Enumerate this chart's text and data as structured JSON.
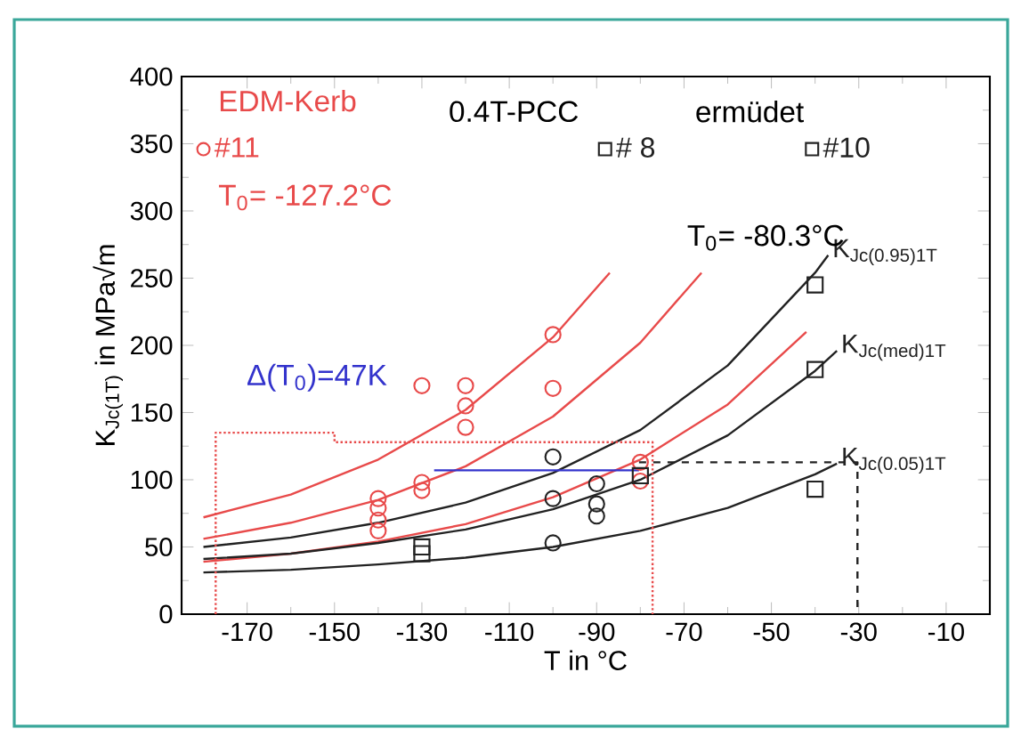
{
  "chart_data": {
    "type": "line",
    "xlabel": "T in °C",
    "ylabel": "K$_{Jc(1T)}$ in MPa√m",
    "xlim": [
      -185,
      0
    ],
    "ylim": [
      0,
      400
    ],
    "xticks": [
      -170,
      -150,
      -130,
      -110,
      -90,
      -70,
      -50,
      -30,
      -10
    ],
    "yticks": [
      0,
      50,
      100,
      150,
      200,
      250,
      300,
      350,
      400
    ],
    "legend": "top",
    "annotations": [
      "EDM-Kerb",
      "T$_{0}$= -127.2°C",
      "0.4T-PCC",
      "ermüdet",
      "T$_{0}$= -80.3°C",
      "Δ(T$_{0}$)=47K"
    ],
    "series": [
      {
        "color": "#e84a4a",
        "x": [
          -180,
          -160,
          -140,
          -120,
          -100,
          -87
        ],
        "values": [
          72,
          89,
          115,
          152,
          206,
          254
        ]
      },
      {
        "color": "#e84a4a",
        "x": [
          -180,
          -160,
          -140,
          -120,
          -100,
          -80,
          -66
        ],
        "values": [
          56,
          68,
          85,
          110,
          147,
          202,
          254
        ]
      },
      {
        "color": "#e84a4a",
        "x": [
          -180,
          -160,
          -140,
          -120,
          -100,
          -80,
          -60,
          -42
        ],
        "values": [
          39,
          45,
          54,
          67,
          87,
          115,
          156,
          210
        ]
      },
      {
        "color": "#222222",
        "name": "K$_{Jc(0.95)1T}$",
        "x": [
          -180,
          -160,
          -140,
          -120,
          -100,
          -80,
          -60,
          -40,
          -37
        ],
        "values": [
          50,
          57,
          68,
          83,
          105,
          137,
          185,
          254,
          267
        ]
      },
      {
        "color": "#222222",
        "name": "K$_{Jc(med)1T}$",
        "x": [
          -180,
          -160,
          -140,
          -120,
          -100,
          -80,
          -60,
          -40,
          -35
        ],
        "values": [
          41,
          45,
          53,
          63,
          78,
          100,
          133,
          181,
          196
        ]
      },
      {
        "color": "#222222",
        "name": "K$_{Jc(0.05)1T}$",
        "x": [
          -180,
          -160,
          -140,
          -120,
          -100,
          -80,
          -60,
          -40,
          -35
        ],
        "values": [
          31,
          33,
          37,
          42,
          50,
          62,
          79,
          104,
          112
        ]
      },
      {
        "color": "#e84a4a",
        "line_style": "dotted",
        "x": [
          -177.2,
          -177.2,
          -150,
          -150,
          -77.2,
          -77.2
        ],
        "values": [
          0,
          135,
          135,
          128,
          128,
          0
        ]
      },
      {
        "color": "#222222",
        "line_style": "dashed",
        "x": [
          -80.3,
          -30.3,
          -30.3
        ],
        "values": [
          113,
          113,
          0
        ]
      },
      {
        "color": "#3333cc",
        "x": [
          -80.3,
          -127.2
        ],
        "values": [
          107,
          107
        ]
      },
      {
        "type": "scatter",
        "marker": "circle",
        "color": "#e84a4a",
        "name": "#11",
        "x": [
          -140,
          -140,
          -140,
          -140,
          -130,
          -130,
          -130,
          -120,
          -120,
          -120,
          -100,
          -100,
          -80,
          -80
        ],
        "values": [
          86,
          79,
          70,
          62,
          98,
          92,
          170,
          170,
          155,
          139,
          208,
          168,
          113,
          99
        ]
      },
      {
        "type": "scatter",
        "marker": "square",
        "color": "#222222",
        "name": "# 8",
        "x": [
          -130,
          -130,
          -80
        ],
        "values": [
          45,
          50,
          103
        ]
      },
      {
        "type": "scatter",
        "marker": "square",
        "color": "#222222",
        "name": "#10",
        "x": [
          -40,
          -40,
          -40
        ],
        "values": [
          245,
          182,
          93
        ]
      },
      {
        "type": "scatter",
        "marker": "circle",
        "color": "#222222",
        "x": [
          -100,
          -100,
          -100,
          -90,
          -90,
          -90
        ],
        "values": [
          117,
          86,
          53,
          97,
          82,
          73
        ]
      }
    ]
  }
}
